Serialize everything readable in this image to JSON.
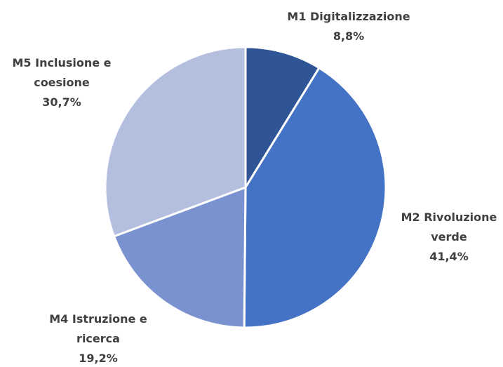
{
  "chart_data": {
    "type": "pie",
    "categories": [
      "M1 Digitalizzazione",
      "M2 Rivoluzione verde",
      "M4 Istruzione e ricerca",
      "M5 Inclusione e coesione"
    ],
    "values": [
      8.8,
      41.4,
      19.2,
      30.7
    ],
    "value_labels": [
      "8,8%",
      "41,4%",
      "19,2%",
      "30,7%"
    ],
    "colors": [
      "#2f5597",
      "#4472c4",
      "#7a92d0",
      "#b4bfe0"
    ]
  }
}
